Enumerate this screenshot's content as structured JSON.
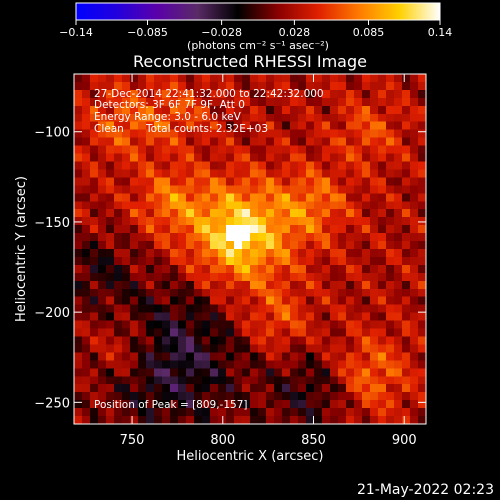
{
  "chart_data": {
    "type": "heatmap",
    "title": "Reconstructed RHESSI Image",
    "xlabel": "Heliocentric X (arcsec)",
    "ylabel": "Heliocentric Y (arcsec)",
    "xlim": [
      718,
      912
    ],
    "ylim": [
      -262,
      -68
    ],
    "x_ticks": [
      750,
      800,
      850,
      900
    ],
    "x_tick_labels": [
      "750",
      "800",
      "850",
      "900"
    ],
    "y_ticks": [
      -100,
      -150,
      -200,
      -250
    ],
    "y_tick_labels": [
      "−100",
      "−150",
      "−200",
      "−250"
    ],
    "grid": false,
    "colorbar": {
      "placement": "top",
      "min": -0.14,
      "max": 0.14,
      "ticks": [
        -0.14,
        -0.085,
        -0.028,
        0.028,
        0.085,
        0.14
      ],
      "tick_labels": [
        "−0.14",
        "−0.085",
        "−0.028",
        "0.028",
        "0.085",
        "0.14"
      ],
      "units": "(photons cm⁻² s⁻¹ asec⁻²)",
      "colors": [
        "#0000ff",
        "#2200dd",
        "#5a00aa",
        "#5a2a66",
        "#000000",
        "#8a0000",
        "#e02000",
        "#ff7a00",
        "#ffd000",
        "#ffffff"
      ]
    },
    "annotations": {
      "time_range": "27-Dec-2014 22:41:32.000 to 22:42:32.000",
      "detectors": "Detectors: 3F 6F 7F 9F, Att 0",
      "energy": "Energy Range: 3.0 - 6.0 keV",
      "clean": "Clean",
      "counts": "Total counts: 2.32E+03",
      "peak": "Position of Peak = [809,-157]"
    },
    "peak": {
      "x": 809,
      "y": -157,
      "value": 0.14
    },
    "bright_blobs": [
      {
        "x": 809,
        "y": -157,
        "sigma": 20,
        "amplitude": 0.09
      },
      {
        "x": 770,
        "y": -138,
        "sigma": 13,
        "amplitude": 0.04
      },
      {
        "x": 850,
        "y": -140,
        "sigma": 14,
        "amplitude": 0.04
      },
      {
        "x": 830,
        "y": -205,
        "sigma": 13,
        "amplitude": 0.035
      },
      {
        "x": 880,
        "y": -235,
        "sigma": 15,
        "amplitude": 0.045
      },
      {
        "x": 745,
        "y": -95,
        "sigma": 14,
        "amplitude": 0.035
      },
      {
        "x": 775,
        "y": -90,
        "sigma": 12,
        "amplitude": 0.03
      },
      {
        "x": 880,
        "y": -100,
        "sigma": 13,
        "amplitude": 0.03
      },
      {
        "x": 745,
        "y": -220,
        "sigma": 13,
        "amplitude": 0.04
      }
    ],
    "negative_regions": [
      {
        "x": 770,
        "y": -225,
        "sigma": 30,
        "amplitude": -0.06
      },
      {
        "x": 850,
        "y": -245,
        "sigma": 18,
        "amplitude": -0.04
      },
      {
        "x": 730,
        "y": -175,
        "sigma": 14,
        "amplitude": -0.03
      }
    ]
  },
  "footer": {
    "timestamp": "21-May-2022 02:23"
  }
}
